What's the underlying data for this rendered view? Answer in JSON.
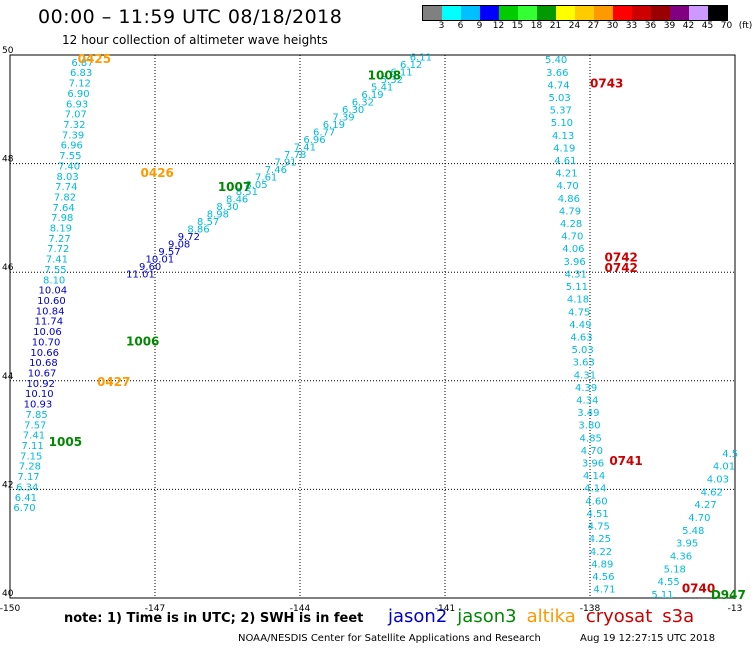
{
  "header": {
    "title": "00:00  –  11:59 UTC 08/18/2018",
    "subtitle": "12 hour collection of altimeter wave heights"
  },
  "colorbar": {
    "colors": [
      "#808080",
      "#00ffff",
      "#00bfff",
      "#0000ff",
      "#00cc00",
      "#33ff33",
      "#009900",
      "#ffff00",
      "#ffcc00",
      "#ff9900",
      "#ff0000",
      "#cc0000",
      "#990000",
      "#800080",
      "#cc99ff",
      "#000000"
    ],
    "labels": [
      "3",
      "6",
      "9",
      "12",
      "15",
      "18",
      "21",
      "24",
      "27",
      "30",
      "33",
      "36",
      "39",
      "42",
      "45",
      "70",
      "(ft)"
    ]
  },
  "axes": {
    "x_ticks": [
      "-150",
      "-147",
      "-144",
      "-141",
      "-138",
      "-13"
    ],
    "y_ticks": [
      "50",
      "48",
      "46",
      "44",
      "42",
      "40"
    ],
    "x_range": [
      -150,
      -135
    ],
    "y_range": [
      40,
      50
    ]
  },
  "satellites": [
    {
      "name": "jason2",
      "color": "#0000cc"
    },
    {
      "name": "jason3",
      "color": "#008800"
    },
    {
      "name": "altika",
      "color": "#ff9900"
    },
    {
      "name": "cryosat",
      "color": "#cc0000"
    },
    {
      "name": "s3a",
      "color": "#cc0000"
    }
  ],
  "note": "note:  1) Time is in UTC;  2) SWH is in feet",
  "footer": {
    "credit": "NOAA/NESDIS Center for Satellite Applications and Research",
    "timestamp": "Aug 19 12:27:15 UTC 2018"
  },
  "time_labels": [
    {
      "text": "0425",
      "color": "#ff9900",
      "lon": -148.6,
      "lat": 49.85
    },
    {
      "text": "0426",
      "color": "#ff9900",
      "lon": -147.3,
      "lat": 47.75
    },
    {
      "text": "0427",
      "color": "#ff9900",
      "lon": -148.2,
      "lat": 43.9
    },
    {
      "text": "1008",
      "color": "#008800",
      "lon": -142.6,
      "lat": 49.55
    },
    {
      "text": "1007",
      "color": "#008800",
      "lon": -145.7,
      "lat": 47.5
    },
    {
      "text": "1006",
      "color": "#008800",
      "lon": -147.6,
      "lat": 44.65
    },
    {
      "text": "1005",
      "color": "#008800",
      "lon": -149.2,
      "lat": 42.8
    },
    {
      "text": "0743",
      "color": "#cc0000",
      "lon": -138.0,
      "lat": 49.4
    },
    {
      "text": "0742",
      "color": "#cc0000",
      "lon": -137.7,
      "lat": 46.2
    },
    {
      "text": "0742",
      "color": "#cc0000",
      "lon": -137.7,
      "lat": 46.0
    },
    {
      "text": "0741",
      "color": "#cc0000",
      "lon": -137.6,
      "lat": 42.45
    },
    {
      "text": "0740",
      "color": "#cc0000",
      "lon": -136.1,
      "lat": 40.1
    },
    {
      "text": "D947",
      "color": "#008800",
      "lon": -135.5,
      "lat": 39.98
    }
  ],
  "tracks": [
    {
      "name": "altika-west",
      "color": "#00bbdd",
      "lon_start": -148.5,
      "lon_end": -149.7,
      "lat_start": 49.8,
      "lat_end": 41.6,
      "values": [
        "6.87",
        "6.83",
        "7.12",
        "6.90",
        "6.93",
        "7.07",
        "7.32",
        "7.39",
        "6.96",
        "7.55",
        "7.40",
        "8.03",
        "7.74",
        "7.82",
        "7.64",
        "7.98",
        "8.19",
        "7.27",
        "7.72",
        "7.41",
        "7.55",
        "8.10",
        "10.04",
        "10.60",
        "10.84",
        "11.74",
        "10.06",
        "10.70",
        "10.66",
        "10.68",
        "10.67",
        "10.92",
        "10.10",
        "10.93",
        "7.85",
        "7.57",
        "7.41",
        "7.11",
        "7.15",
        "7.28",
        "7.17",
        "6.34",
        "6.41",
        "6.70"
      ]
    },
    {
      "name": "jason3-east",
      "color": "#00bbdd",
      "lon_start": -141.5,
      "lon_end": -147.3,
      "lat_start": 49.9,
      "lat_end": 45.9,
      "values": [
        "6.11",
        "6.12",
        "6.11",
        "5.32",
        "5.41",
        "6.19",
        "6.32",
        "6.30",
        "7.39",
        "6.19",
        "6.77",
        "6.96",
        "7.41",
        "7.78",
        "7.91",
        "7.46",
        "7.61",
        "8.05",
        "8.51",
        "8.46",
        "8.30",
        "8.98",
        "8.57",
        "8.86",
        "9.72",
        "9.08",
        "9.57",
        "10.01",
        "9.60",
        "11.01"
      ]
    },
    {
      "name": "cryosat-track",
      "color": "#00bbdd",
      "lon_start": -138.7,
      "lon_end": -137.7,
      "lat_start": 49.85,
      "lat_end": 40.1,
      "values": [
        "5.40",
        "3.66",
        "4.74",
        "5.03",
        "5.37",
        "5.10",
        "4.13",
        "4.19",
        "4.61",
        "4.21",
        "4.70",
        "4.86",
        "4.79",
        "4.28",
        "4.70",
        "4.06",
        "3.96",
        "4.31",
        "5.11",
        "4.18",
        "4.75",
        "4.49",
        "4.63",
        "5.03",
        "3.63",
        "4.31",
        "4.39",
        "4.34",
        "3.49",
        "3.80",
        "4.85",
        "4.70",
        "3.96",
        "4.14",
        "4.14",
        "4.60",
        "4.51",
        "4.75",
        "4.25",
        "4.22",
        "4.89",
        "4.56",
        "4.71"
      ]
    },
    {
      "name": "s3a-track",
      "color": "#00bbdd",
      "lon_start": -135.1,
      "lon_end": -136.5,
      "lat_start": 42.6,
      "lat_end": 40.0,
      "values": [
        "4.5",
        "4.01",
        "4.03",
        "4.62",
        "4.27",
        "4.70",
        "5.48",
        "3.95",
        "4.36",
        "5.18",
        "4.55",
        "5.11"
      ]
    }
  ]
}
